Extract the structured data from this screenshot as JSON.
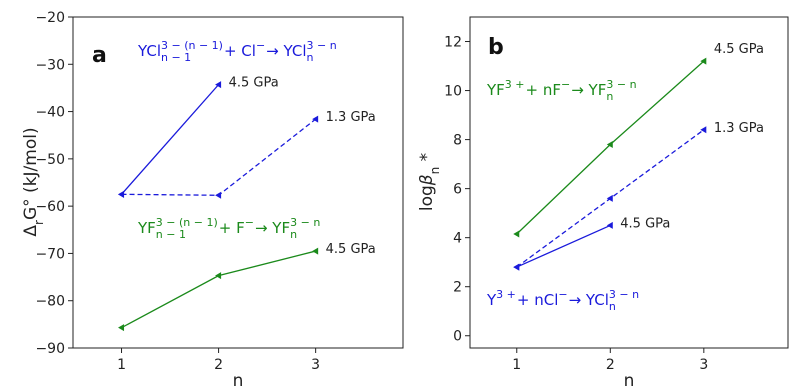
{
  "chart_data": [
    {
      "type": "line",
      "panel": "a",
      "xlabel": "n",
      "ylabel": "ΔrG° (kJ/mol)",
      "xlim": [
        0.5,
        3.9
      ],
      "ylim": [
        -90,
        -20
      ],
      "xticks": [
        1,
        2,
        3
      ],
      "yticks": [
        -90,
        -80,
        -70,
        -60,
        -50,
        -40,
        -30,
        -20
      ],
      "grid": false,
      "series": [
        {
          "x": [
            1,
            2
          ],
          "y": [
            -57.5,
            -34.3
          ],
          "color": "#1a1adb",
          "dash": "solid",
          "label": "4.5 GPa"
        },
        {
          "x": [
            1,
            2,
            3
          ],
          "y": [
            -57.5,
            -57.7,
            -41.6
          ],
          "color": "#1a1adb",
          "dash": "dashed",
          "label": "1.3 GPa"
        },
        {
          "x": [
            1,
            2,
            3
          ],
          "y": [
            -85.7,
            -74.7,
            -69.5
          ],
          "color": "#1b8a1b",
          "dash": "solid",
          "label": "4.5 GPa"
        }
      ],
      "equations": [
        {
          "color": "#1a1adb",
          "parts": [
            {
              "t": "YCl"
            },
            {
              "sup": "3 − (n − 1)",
              "sub": "n − 1"
            },
            {
              "t": " + Cl"
            },
            {
              "sup": " −"
            },
            {
              "t": " → YCl"
            },
            {
              "sup": "3 − n",
              "sub": "n"
            }
          ]
        },
        {
          "color": "#1b8a1b",
          "parts": [
            {
              "t": "YF"
            },
            {
              "sup": "3 − (n − 1)",
              "sub": "n − 1"
            },
            {
              "t": " + F"
            },
            {
              "sup": " −"
            },
            {
              "t": " → YF"
            },
            {
              "sup": "3 − n",
              "sub": "n"
            }
          ]
        }
      ]
    },
    {
      "type": "line",
      "panel": "b",
      "xlabel": "n",
      "ylabel": "logβn *",
      "xlim": [
        0.5,
        3.9
      ],
      "ylim": [
        -0.5,
        13
      ],
      "xticks": [
        1,
        2,
        3
      ],
      "yticks": [
        0,
        2,
        4,
        6,
        8,
        10,
        12
      ],
      "grid": false,
      "series": [
        {
          "x": [
            1,
            2,
            3
          ],
          "y": [
            4.15,
            7.8,
            11.2
          ],
          "color": "#1b8a1b",
          "dash": "solid",
          "label": "4.5 GPa"
        },
        {
          "x": [
            1,
            2,
            3
          ],
          "y": [
            2.8,
            5.6,
            8.4
          ],
          "color": "#1a1adb",
          "dash": "dashed",
          "label": "1.3 GPa"
        },
        {
          "x": [
            1,
            2
          ],
          "y": [
            2.8,
            4.5
          ],
          "color": "#1a1adb",
          "dash": "solid",
          "label": "4.5 GPa"
        }
      ],
      "equations": [
        {
          "color": "#1b8a1b",
          "parts": [
            {
              "t": "YF"
            },
            {
              "sup": "3 +"
            },
            {
              "t": " + nF"
            },
            {
              "sup": " −"
            },
            {
              "t": " → YF"
            },
            {
              "sup": "3 − n",
              "sub": "n"
            }
          ]
        },
        {
          "color": "#1a1adb",
          "parts": [
            {
              "t": "Y"
            },
            {
              "sup": "3 +"
            },
            {
              "t": " + nCl"
            },
            {
              "sup": " −"
            },
            {
              "t": " → YCl"
            },
            {
              "sup": "3 − n",
              "sub": "n"
            }
          ]
        }
      ]
    }
  ]
}
